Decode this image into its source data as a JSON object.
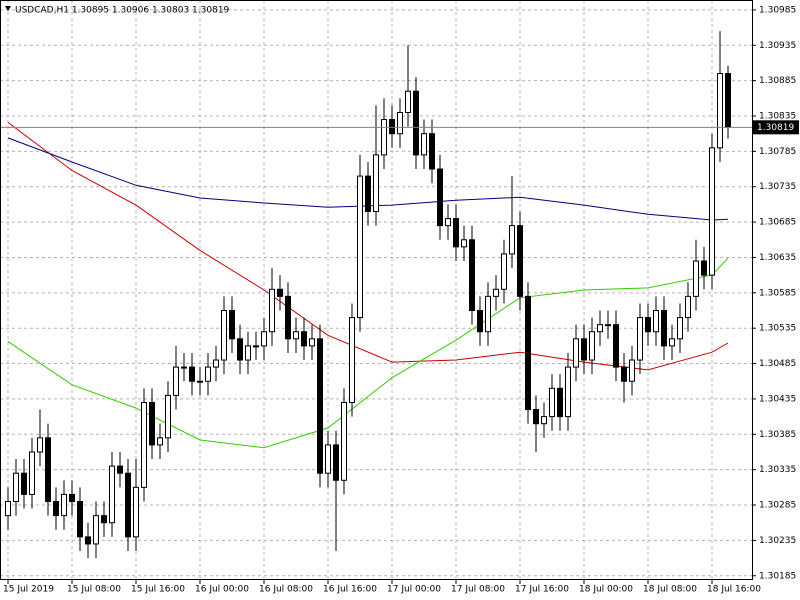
{
  "chart_data": {
    "type": "candlestick",
    "title": "USDCAD,H1  1.30895 1.30906 1.30803 1.30819",
    "categories": [
      "15 Jul 2019",
      null,
      null,
      null,
      null,
      null,
      null,
      null,
      "15 Jul 08:00",
      null,
      null,
      null,
      null,
      null,
      null,
      null,
      "15 Jul 16:00",
      null,
      null,
      null,
      null,
      null,
      null,
      null,
      "16 Jul 00:00",
      null,
      null,
      null,
      null,
      null,
      null,
      null,
      "16 Jul 08:00",
      null,
      null,
      null,
      null,
      null,
      null,
      null,
      "16 Jul 16:00",
      null,
      null,
      null,
      null,
      null,
      null,
      null,
      "17 Jul 00:00",
      null,
      null,
      null,
      null,
      null,
      null,
      null,
      "17 Jul 08:00",
      null,
      null,
      null,
      null,
      null,
      null,
      null,
      "17 Jul 16:00",
      null,
      null,
      null,
      null,
      null,
      null,
      null,
      "18 Jul 00:00",
      null,
      null,
      null,
      null,
      null,
      null,
      null,
      "18 Jul 08:00",
      null,
      null,
      null,
      null,
      null,
      null,
      null,
      "18 Jul 16:00",
      null,
      null
    ],
    "open": [
      1.3027,
      1.3029,
      1.3033,
      1.303,
      1.3036,
      1.3038,
      1.3029,
      1.3027,
      1.303,
      1.3029,
      1.3024,
      1.3023,
      1.3027,
      1.3026,
      1.3034,
      1.3033,
      1.3024,
      1.3031,
      1.3043,
      1.3037,
      1.3038,
      1.3044,
      1.3048,
      1.3048,
      1.3046,
      1.3046,
      1.3048,
      1.3049,
      1.3056,
      1.3052,
      1.3049,
      1.3051,
      1.3051,
      1.3053,
      1.3059,
      1.3058,
      1.3052,
      1.3053,
      1.3051,
      1.3052,
      1.3033,
      1.3037,
      1.3032,
      1.3043,
      1.3055,
      1.3075,
      1.307,
      1.3078,
      1.3083,
      1.3081,
      1.3084,
      1.3087,
      1.3078,
      1.3081,
      1.3076,
      1.3068,
      1.3069,
      1.3065,
      1.3066,
      1.3056,
      1.3053,
      1.3058,
      1.3059,
      1.3064,
      1.3068,
      1.3058,
      1.3042,
      1.304,
      1.3041,
      1.3045,
      1.3041,
      1.3048,
      1.3052,
      1.3049,
      1.3053,
      1.3054,
      1.3054,
      1.3048,
      1.3046,
      1.3049,
      1.3055,
      1.3053,
      1.3056,
      1.3051,
      1.3052,
      1.3055,
      1.3058,
      1.3063,
      1.3061,
      1.3079,
      1.30895
    ],
    "high": [
      1.3031,
      1.3035,
      1.3035,
      1.3038,
      1.3042,
      1.304,
      1.3031,
      1.3032,
      1.3032,
      1.3031,
      1.3026,
      1.3029,
      1.3029,
      1.3036,
      1.3036,
      1.3035,
      1.3035,
      1.3045,
      1.3045,
      1.304,
      1.3046,
      1.3051,
      1.305,
      1.305,
      1.3048,
      1.305,
      1.3051,
      1.3058,
      1.3058,
      1.3054,
      1.3053,
      1.3053,
      1.3055,
      1.3062,
      1.3061,
      1.306,
      1.3055,
      1.3055,
      1.3054,
      1.3054,
      1.3039,
      1.3039,
      1.3045,
      1.3057,
      1.3078,
      1.3077,
      1.3085,
      1.3086,
      1.3085,
      1.3086,
      1.30935,
      1.3089,
      1.3083,
      1.3083,
      1.3078,
      1.3071,
      1.3071,
      1.3068,
      1.3068,
      1.3058,
      1.306,
      1.3061,
      1.3066,
      1.3075,
      1.307,
      1.306,
      1.3044,
      1.3043,
      1.3047,
      1.3047,
      1.305,
      1.3054,
      1.3054,
      1.3055,
      1.3056,
      1.3056,
      1.3056,
      1.305,
      1.3051,
      1.3057,
      1.3057,
      1.3058,
      1.3058,
      1.3054,
      1.3057,
      1.306,
      1.3066,
      1.3065,
      1.3081,
      1.30955,
      1.30906
    ],
    "low": [
      1.3025,
      1.3027,
      1.3028,
      1.3028,
      1.3034,
      1.3027,
      1.3025,
      1.3025,
      1.3027,
      1.3022,
      1.3021,
      1.3021,
      1.3024,
      1.3024,
      1.3031,
      1.3022,
      1.3022,
      1.3029,
      1.3035,
      1.3035,
      1.3036,
      1.3042,
      1.3046,
      1.3044,
      1.3044,
      1.3044,
      1.3046,
      1.3047,
      1.305,
      1.3047,
      1.3047,
      1.3049,
      1.3049,
      1.3051,
      1.3056,
      1.305,
      1.305,
      1.3049,
      1.3049,
      1.3031,
      1.3031,
      1.3022,
      1.303,
      1.3041,
      1.3053,
      1.3068,
      1.3068,
      1.3076,
      1.3079,
      1.3079,
      1.3082,
      1.3076,
      1.3076,
      1.3074,
      1.3066,
      1.3066,
      1.3063,
      1.3063,
      1.3054,
      1.3051,
      1.3051,
      1.3056,
      1.3057,
      1.3062,
      1.3056,
      1.304,
      1.3036,
      1.3038,
      1.3039,
      1.3039,
      1.3039,
      1.3046,
      1.3047,
      1.3047,
      1.3051,
      1.3052,
      1.3046,
      1.3043,
      1.3044,
      1.3047,
      1.3051,
      1.3051,
      1.3049,
      1.3049,
      1.305,
      1.3053,
      1.3056,
      1.3059,
      1.3059,
      1.3077,
      1.30803
    ],
    "close": [
      1.3029,
      1.3033,
      1.303,
      1.3036,
      1.3038,
      1.3029,
      1.3027,
      1.303,
      1.3029,
      1.3024,
      1.3023,
      1.3027,
      1.3026,
      1.3034,
      1.3033,
      1.3024,
      1.3031,
      1.3043,
      1.3037,
      1.3038,
      1.3044,
      1.3048,
      1.3048,
      1.3046,
      1.3046,
      1.3048,
      1.3049,
      1.3056,
      1.3052,
      1.3049,
      1.3051,
      1.3051,
      1.3053,
      1.3059,
      1.3058,
      1.3052,
      1.3053,
      1.3051,
      1.3052,
      1.3033,
      1.3037,
      1.3032,
      1.3043,
      1.3055,
      1.3075,
      1.307,
      1.3078,
      1.3083,
      1.3081,
      1.3084,
      1.3087,
      1.3078,
      1.3081,
      1.3076,
      1.3068,
      1.3069,
      1.3065,
      1.3066,
      1.3056,
      1.3053,
      1.3058,
      1.3059,
      1.3064,
      1.3068,
      1.3058,
      1.3042,
      1.304,
      1.3041,
      1.3045,
      1.3041,
      1.3048,
      1.3052,
      1.3049,
      1.3053,
      1.3054,
      1.3054,
      1.3048,
      1.3046,
      1.3049,
      1.3055,
      1.3053,
      1.3056,
      1.3051,
      1.3052,
      1.3055,
      1.3058,
      1.3063,
      1.3061,
      1.3079,
      1.30895,
      1.30819
    ],
    "up_color": "#ffffff",
    "down_color": "#000000",
    "series": [
      {
        "color": "#cc0000",
        "x": [
          0,
          8,
          16,
          24,
          32,
          40,
          48,
          56,
          64,
          72,
          80,
          88,
          90
        ],
        "values": [
          1.30826,
          1.30758,
          1.30709,
          1.30645,
          1.30589,
          1.30525,
          1.30487,
          1.3049,
          1.30501,
          1.30487,
          1.30476,
          1.30501,
          1.30514
        ]
      },
      {
        "color": "#000080",
        "x": [
          0,
          8,
          16,
          24,
          32,
          40,
          48,
          56,
          64,
          72,
          80,
          88,
          90
        ],
        "values": [
          1.30804,
          1.3077,
          1.30737,
          1.30719,
          1.30712,
          1.30706,
          1.30709,
          1.30716,
          1.3072,
          1.30709,
          1.30696,
          1.30688,
          1.30689
        ]
      },
      {
        "color": "#33cc00",
        "x": [
          0,
          8,
          16,
          24,
          32,
          40,
          48,
          56,
          64,
          72,
          80,
          88,
          90
        ],
        "values": [
          1.30516,
          1.30455,
          1.30422,
          1.30377,
          1.30366,
          1.30394,
          1.30465,
          1.30518,
          1.30578,
          1.30589,
          1.30592,
          1.3061,
          1.30634
        ]
      }
    ],
    "ylim": [
      1.30179,
      1.30999
    ],
    "yticks": [
      1.30985,
      1.30935,
      1.30885,
      1.30835,
      1.30785,
      1.30735,
      1.30685,
      1.30635,
      1.30585,
      1.30535,
      1.30485,
      1.30435,
      1.30385,
      1.30335,
      1.30285,
      1.30235,
      1.30185
    ],
    "grid": true
  }
}
